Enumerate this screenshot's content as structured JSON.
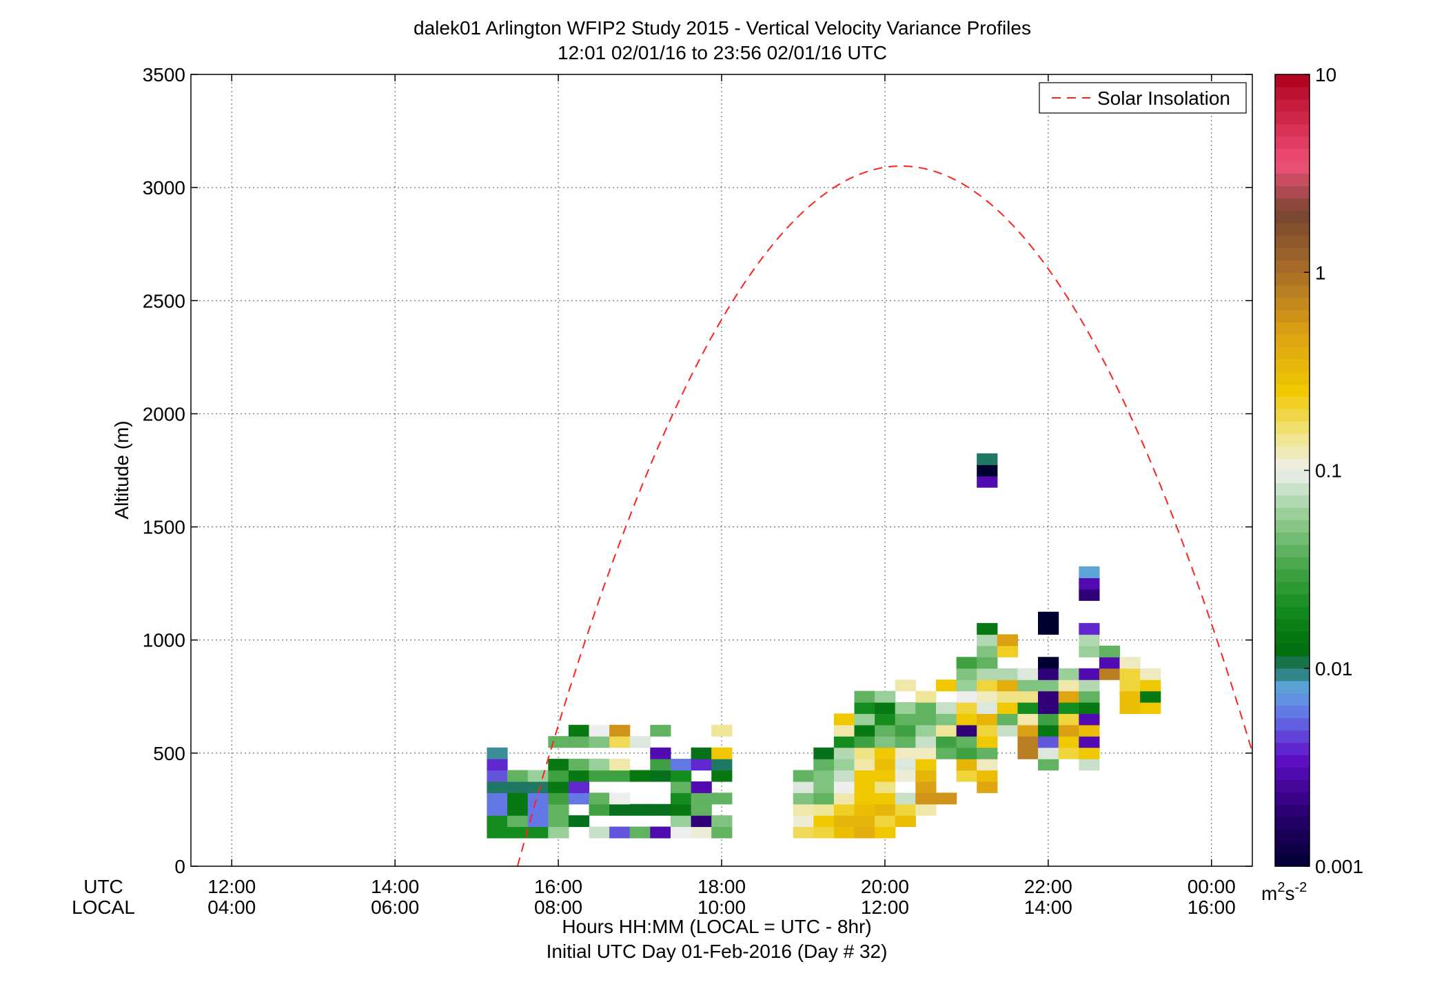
{
  "chart_data": {
    "type": "heatmap",
    "title": "dalek01 Arlington WFIP2 Study 2015 - Vertical Velocity Variance Profiles",
    "subtitle": "12:01 02/01/16 to 23:56 02/01/16  UTC",
    "ylabel": "Altitude (m)",
    "xlabel": "Hours HH:MM  (LOCAL = UTC - 8hr)",
    "xlabel2": "Initial UTC Day 01-Feb-2016 (Day # 32)",
    "x_row_labels": [
      "UTC",
      "LOCAL"
    ],
    "xlim_hours": [
      11.5,
      24.5
    ],
    "ylim": [
      0,
      3500
    ],
    "y_ticks": [
      {
        "value": 0,
        "label": "0"
      },
      {
        "value": 500,
        "label": "500"
      },
      {
        "value": 1000,
        "label": "1000"
      },
      {
        "value": 1500,
        "label": "1500"
      },
      {
        "value": 2000,
        "label": "2000"
      },
      {
        "value": 2500,
        "label": "2500"
      },
      {
        "value": 3000,
        "label": "3000"
      },
      {
        "value": 3500,
        "label": "3500"
      }
    ],
    "x_ticks": [
      {
        "hour": 12,
        "utc": "12:00",
        "local": "04:00"
      },
      {
        "hour": 14,
        "utc": "14:00",
        "local": "06:00"
      },
      {
        "hour": 16,
        "utc": "16:00",
        "local": "08:00"
      },
      {
        "hour": 18,
        "utc": "18:00",
        "local": "10:00"
      },
      {
        "hour": 20,
        "utc": "20:00",
        "local": "12:00"
      },
      {
        "hour": 22,
        "utc": "22:00",
        "local": "14:00"
      },
      {
        "hour": 24,
        "utc": "00:00",
        "local": "16:00"
      }
    ],
    "grid": true,
    "legend": {
      "position": "top-right",
      "entries": [
        {
          "label": "Solar Insolation",
          "color": "#ff2020",
          "style": "dashed"
        }
      ]
    },
    "solar_insolation": {
      "start_hour": 15.5,
      "peak_hour": 20.2,
      "peak_altitude": 3095,
      "end_hour": 24.5,
      "end_altitude": 560
    },
    "colorbar": {
      "scale": "log",
      "range": [
        0.001,
        10
      ],
      "unit": "m²s⁻²",
      "unit_base": "m",
      "unit_exp1": "2",
      "unit_mid": "s",
      "unit_exp2": "-2",
      "ticks": [
        {
          "value": 0.001,
          "label": "0.001"
        },
        {
          "value": 0.01,
          "label": "0.01"
        },
        {
          "value": 0.1,
          "label": "0.1"
        },
        {
          "value": 1,
          "label": "1"
        },
        {
          "value": 10,
          "label": "10"
        }
      ]
    },
    "cell": {
      "dx_hours": 0.25,
      "dy_m": 50
    },
    "cells": [
      [
        15.25,
        150,
        0.02
      ],
      [
        15.25,
        200,
        0.02
      ],
      [
        15.25,
        250,
        0.006
      ],
      [
        15.25,
        300,
        0.006
      ],
      [
        15.25,
        350,
        0.01
      ],
      [
        15.25,
        400,
        0.005
      ],
      [
        15.25,
        450,
        0.004
      ],
      [
        15.25,
        500,
        0.009
      ],
      [
        15.5,
        150,
        0.02
      ],
      [
        15.5,
        200,
        0.04
      ],
      [
        15.5,
        250,
        0.015
      ],
      [
        15.5,
        300,
        0.015
      ],
      [
        15.5,
        350,
        0.01
      ],
      [
        15.5,
        400,
        0.04
      ],
      [
        15.75,
        150,
        0.02
      ],
      [
        15.75,
        200,
        0.006
      ],
      [
        15.75,
        250,
        0.006
      ],
      [
        15.75,
        300,
        0.006
      ],
      [
        15.75,
        350,
        0.01
      ],
      [
        15.75,
        400,
        0.06
      ],
      [
        16,
        150,
        0.06
      ],
      [
        16,
        200,
        0.04
      ],
      [
        16,
        250,
        0.04
      ],
      [
        16,
        300,
        0.03
      ],
      [
        16,
        350,
        0.015
      ],
      [
        16,
        400,
        0.03
      ],
      [
        16,
        450,
        0.015
      ],
      [
        16,
        550,
        0.04
      ],
      [
        16.25,
        200,
        0.012
      ],
      [
        16.25,
        300,
        0.006
      ],
      [
        16.25,
        350,
        0.004
      ],
      [
        16.25,
        400,
        0.015
      ],
      [
        16.25,
        450,
        0.04
      ],
      [
        16.25,
        550,
        0.04
      ],
      [
        16.25,
        600,
        0.015
      ],
      [
        16.5,
        150,
        0.08
      ],
      [
        16.5,
        250,
        0.03
      ],
      [
        16.5,
        300,
        0.04
      ],
      [
        16.5,
        400,
        0.03
      ],
      [
        16.5,
        450,
        0.06
      ],
      [
        16.5,
        550,
        0.05
      ],
      [
        16.5,
        600,
        0.1
      ],
      [
        16.75,
        150,
        0.005
      ],
      [
        16.75,
        250,
        0.012
      ],
      [
        16.75,
        300,
        0.1
      ],
      [
        16.75,
        400,
        0.03
      ],
      [
        16.75,
        450,
        0.13
      ],
      [
        16.75,
        550,
        0.18
      ],
      [
        16.75,
        600,
        0.6
      ],
      [
        17,
        150,
        0.04
      ],
      [
        17,
        250,
        0.012
      ],
      [
        17,
        400,
        0.015
      ],
      [
        17,
        550,
        0.09
      ],
      [
        17.25,
        150,
        0.003
      ],
      [
        17.25,
        250,
        0.012
      ],
      [
        17.25,
        400,
        0.012
      ],
      [
        17.25,
        450,
        0.03
      ],
      [
        17.25,
        500,
        0.003
      ],
      [
        17.25,
        600,
        0.04
      ],
      [
        17.5,
        150,
        0.1
      ],
      [
        17.5,
        200,
        0.06
      ],
      [
        17.5,
        250,
        0.015
      ],
      [
        17.5,
        300,
        0.02
      ],
      [
        17.5,
        350,
        0.04
      ],
      [
        17.5,
        400,
        0.02
      ],
      [
        17.5,
        450,
        0.006
      ],
      [
        17.75,
        150,
        0.11
      ],
      [
        17.75,
        200,
        0.002
      ],
      [
        17.75,
        250,
        0.04
      ],
      [
        17.75,
        300,
        0.04
      ],
      [
        17.75,
        350,
        0.003
      ],
      [
        17.75,
        450,
        0.004
      ],
      [
        17.75,
        500,
        0.012
      ],
      [
        18,
        150,
        0.04
      ],
      [
        18,
        200,
        0.05
      ],
      [
        18,
        300,
        0.04
      ],
      [
        18,
        400,
        0.015
      ],
      [
        18,
        450,
        0.01
      ],
      [
        18,
        500,
        0.25
      ],
      [
        18,
        600,
        0.14
      ],
      [
        19,
        150,
        0.18
      ],
      [
        19,
        200,
        0.11
      ],
      [
        19,
        250,
        0.13
      ],
      [
        19,
        300,
        0.05
      ],
      [
        19,
        350,
        0.09
      ],
      [
        19,
        400,
        0.04
      ],
      [
        19.25,
        150,
        0.2
      ],
      [
        19.25,
        200,
        0.25
      ],
      [
        19.25,
        250,
        0.14
      ],
      [
        19.25,
        300,
        0.04
      ],
      [
        19.25,
        350,
        0.05
      ],
      [
        19.25,
        400,
        0.05
      ],
      [
        19.25,
        450,
        0.04
      ],
      [
        19.25,
        500,
        0.012
      ],
      [
        19.5,
        150,
        0.3
      ],
      [
        19.5,
        200,
        0.35
      ],
      [
        19.5,
        250,
        0.22
      ],
      [
        19.5,
        300,
        0.13
      ],
      [
        19.5,
        350,
        0.1
      ],
      [
        19.5,
        400,
        0.08
      ],
      [
        19.5,
        450,
        0.06
      ],
      [
        19.5,
        500,
        0.07
      ],
      [
        19.5,
        550,
        0.02
      ],
      [
        19.5,
        600,
        0.13
      ],
      [
        19.5,
        650,
        0.25
      ],
      [
        19.75,
        150,
        0.4
      ],
      [
        19.75,
        200,
        0.35
      ],
      [
        19.75,
        250,
        0.3
      ],
      [
        19.75,
        300,
        0.25
      ],
      [
        19.75,
        350,
        0.25
      ],
      [
        19.75,
        400,
        0.25
      ],
      [
        19.75,
        450,
        0.13
      ],
      [
        19.75,
        500,
        0.15
      ],
      [
        19.75,
        550,
        0.03
      ],
      [
        19.75,
        600,
        0.015
      ],
      [
        19.75,
        650,
        0.06
      ],
      [
        19.75,
        700,
        0.02
      ],
      [
        19.75,
        750,
        0.04
      ],
      [
        20,
        150,
        0.25
      ],
      [
        20,
        200,
        0.2
      ],
      [
        20,
        250,
        0.35
      ],
      [
        20,
        300,
        0.25
      ],
      [
        20,
        350,
        0.15
      ],
      [
        20,
        400,
        0.25
      ],
      [
        20,
        450,
        0.3
      ],
      [
        20,
        500,
        0.25
      ],
      [
        20,
        550,
        0.05
      ],
      [
        20,
        600,
        0.04
      ],
      [
        20,
        650,
        0.02
      ],
      [
        20,
        700,
        0.015
      ],
      [
        20,
        750,
        0.06
      ],
      [
        20.25,
        200,
        0.3
      ],
      [
        20.25,
        250,
        0.2
      ],
      [
        20.25,
        300,
        0.08
      ],
      [
        20.25,
        400,
        0.11
      ],
      [
        20.25,
        450,
        0.09
      ],
      [
        20.25,
        500,
        0.12
      ],
      [
        20.25,
        550,
        0.04
      ],
      [
        20.25,
        600,
        0.03
      ],
      [
        20.25,
        650,
        0.04
      ],
      [
        20.25,
        700,
        0.06
      ],
      [
        20.25,
        800,
        0.13
      ],
      [
        20.5,
        250,
        0.13
      ],
      [
        20.5,
        300,
        0.6
      ],
      [
        20.5,
        350,
        0.5
      ],
      [
        20.5,
        400,
        0.35
      ],
      [
        20.5,
        450,
        0.25
      ],
      [
        20.5,
        500,
        0.12
      ],
      [
        20.5,
        550,
        0.08
      ],
      [
        20.5,
        600,
        0.06
      ],
      [
        20.5,
        650,
        0.04
      ],
      [
        20.5,
        700,
        0.04
      ],
      [
        20.5,
        750,
        0.14
      ],
      [
        20.75,
        300,
        0.6
      ],
      [
        20.75,
        500,
        0.04
      ],
      [
        20.75,
        550,
        0.03
      ],
      [
        20.75,
        600,
        0.14
      ],
      [
        20.75,
        650,
        0.05
      ],
      [
        20.75,
        700,
        0.08
      ],
      [
        20.75,
        800,
        0.25
      ],
      [
        21,
        400,
        0.2
      ],
      [
        21,
        450,
        0.35
      ],
      [
        21,
        500,
        0.03
      ],
      [
        21,
        550,
        0.04
      ],
      [
        21,
        600,
        0.002
      ],
      [
        21,
        650,
        0.25
      ],
      [
        21,
        700,
        0.2
      ],
      [
        21,
        750,
        0.1
      ],
      [
        21,
        800,
        0.06
      ],
      [
        21,
        850,
        0.05
      ],
      [
        21,
        900,
        0.03
      ],
      [
        21.25,
        350,
        0.45
      ],
      [
        21.25,
        400,
        0.3
      ],
      [
        21.25,
        450,
        0.12
      ],
      [
        21.25,
        500,
        0.04
      ],
      [
        21.25,
        550,
        0.25
      ],
      [
        21.25,
        600,
        0.2
      ],
      [
        21.25,
        650,
        0.35
      ],
      [
        21.25,
        700,
        0.09
      ],
      [
        21.25,
        750,
        0.12
      ],
      [
        21.25,
        800,
        0.2
      ],
      [
        21.25,
        850,
        0.07
      ],
      [
        21.25,
        900,
        0.04
      ],
      [
        21.25,
        950,
        0.05
      ],
      [
        21.25,
        1000,
        0.07
      ],
      [
        21.25,
        1050,
        0.015
      ],
      [
        21.25,
        1700,
        0.003
      ],
      [
        21.25,
        1750,
        0.001
      ],
      [
        21.25,
        1800,
        0.01
      ],
      [
        21.5,
        600,
        0.08
      ],
      [
        21.5,
        650,
        0.04
      ],
      [
        21.5,
        700,
        0.25
      ],
      [
        21.5,
        750,
        0.15
      ],
      [
        21.5,
        800,
        0.4
      ],
      [
        21.5,
        850,
        0.07
      ],
      [
        21.5,
        950,
        0.22
      ],
      [
        21.5,
        1000,
        0.5
      ],
      [
        21.75,
        500,
        0.8
      ],
      [
        21.75,
        550,
        0.8
      ],
      [
        21.75,
        600,
        0.5
      ],
      [
        21.75,
        650,
        0.13
      ],
      [
        21.75,
        700,
        0.02
      ],
      [
        21.75,
        750,
        0.15
      ],
      [
        21.75,
        800,
        0.05
      ],
      [
        21.75,
        850,
        0.09
      ],
      [
        22,
        450,
        0.04
      ],
      [
        22,
        500,
        0.09
      ],
      [
        22,
        550,
        0.005
      ],
      [
        22,
        600,
        0.015
      ],
      [
        22,
        650,
        0.03
      ],
      [
        22,
        700,
        0.002
      ],
      [
        22,
        750,
        0.002
      ],
      [
        22,
        800,
        0.05
      ],
      [
        22,
        850,
        0.002
      ],
      [
        22,
        900,
        0.001
      ],
      [
        22,
        1050,
        0.001
      ],
      [
        22,
        1100,
        0.001
      ],
      [
        22.25,
        500,
        0.2
      ],
      [
        22.25,
        550,
        0.25
      ],
      [
        22.25,
        600,
        0.5
      ],
      [
        22.25,
        650,
        0.2
      ],
      [
        22.25,
        700,
        0.02
      ],
      [
        22.25,
        750,
        0.45
      ],
      [
        22.25,
        800,
        0.13
      ],
      [
        22.25,
        850,
        0.06
      ],
      [
        22.5,
        450,
        0.08
      ],
      [
        22.5,
        500,
        0.25
      ],
      [
        22.5,
        550,
        0.003
      ],
      [
        22.5,
        600,
        0.3
      ],
      [
        22.5,
        650,
        0.003
      ],
      [
        22.5,
        700,
        0.015
      ],
      [
        22.5,
        750,
        0.04
      ],
      [
        22.5,
        800,
        0.07
      ],
      [
        22.5,
        850,
        0.003
      ],
      [
        22.5,
        950,
        0.06
      ],
      [
        22.5,
        1000,
        0.07
      ],
      [
        22.5,
        1050,
        0.004
      ],
      [
        22.5,
        1200,
        0.002
      ],
      [
        22.5,
        1250,
        0.003
      ],
      [
        22.5,
        1300,
        0.008
      ],
      [
        22.75,
        850,
        0.8
      ],
      [
        22.75,
        900,
        0.003
      ],
      [
        22.75,
        950,
        0.04
      ],
      [
        23,
        700,
        0.3
      ],
      [
        23,
        750,
        0.3
      ],
      [
        23,
        800,
        0.2
      ],
      [
        23,
        850,
        0.2
      ],
      [
        23,
        900,
        0.12
      ],
      [
        23.25,
        700,
        0.25
      ],
      [
        23.25,
        750,
        0.015
      ],
      [
        23.25,
        800,
        0.25
      ],
      [
        23.25,
        850,
        0.12
      ]
    ]
  }
}
